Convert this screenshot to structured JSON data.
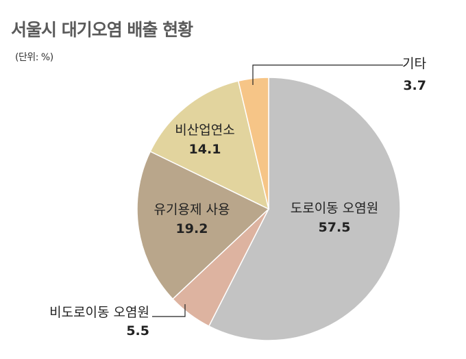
{
  "chart_data": {
    "type": "pie",
    "title": "서울시 대기오염 배출 현황",
    "unit_label": "(단위: %)",
    "start_angle_deg": 0,
    "direction": "clockwise",
    "slices": [
      {
        "label": "도로이동 오염원",
        "value": 57.5,
        "display": "57.5",
        "color": "#c3c3c3"
      },
      {
        "label": "비도로이동 오염원",
        "value": 5.5,
        "display": "5.5",
        "color": "#ddb3a0"
      },
      {
        "label": "유기용제 사용",
        "value": 19.2,
        "display": "19.2",
        "color": "#b9a68b"
      },
      {
        "label": "비산업연소",
        "value": 14.1,
        "display": "14.1",
        "color": "#e2d49e"
      },
      {
        "label": "기타",
        "value": 3.7,
        "display": "3.7",
        "color": "#f6c587"
      }
    ]
  }
}
